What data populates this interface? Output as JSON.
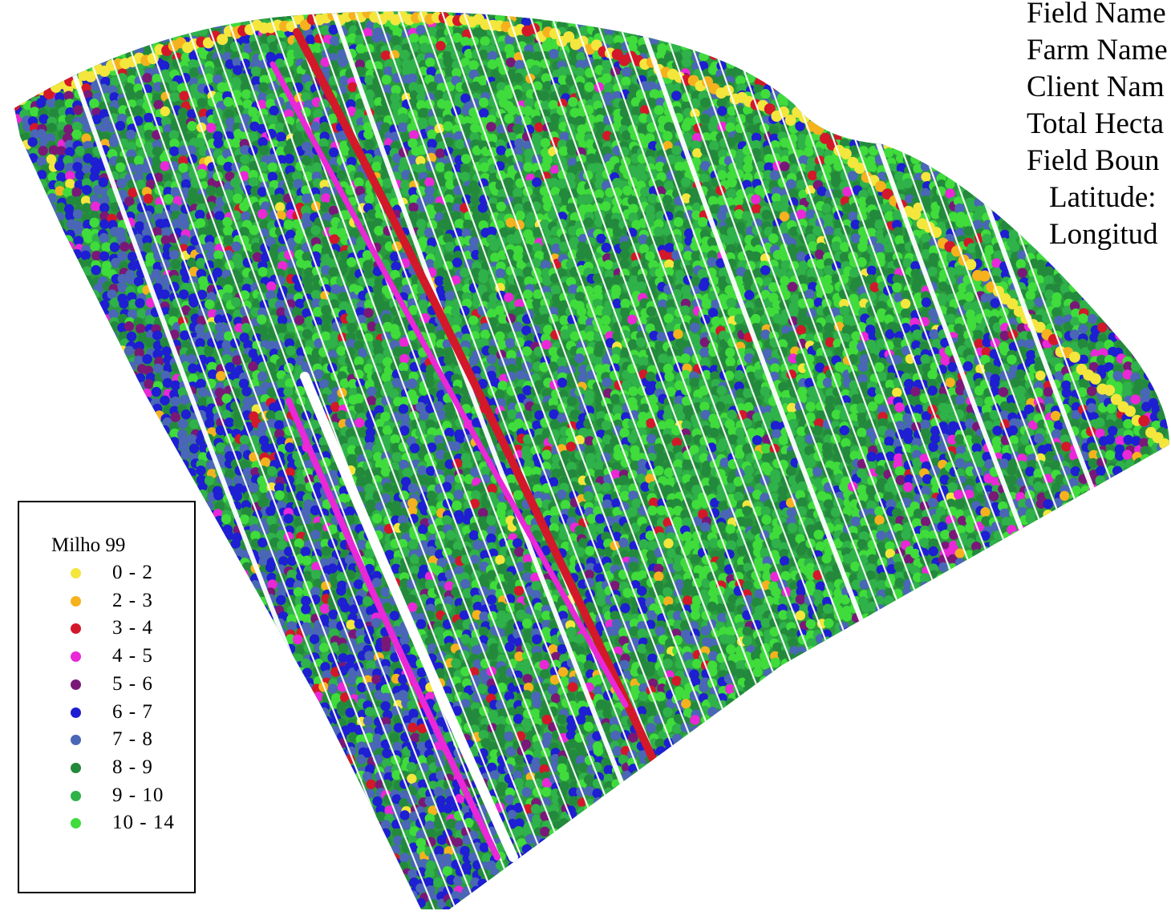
{
  "info": {
    "field_name": "Field Name",
    "farm_name": "Farm Name",
    "client_name": "Client Nam",
    "total_hectares": "Total Hecta",
    "field_boundary": "Field Boun",
    "latitude": "Latitude:",
    "longitude": "Longitud"
  },
  "legend": {
    "title": "Milho 99",
    "classes": [
      {
        "label": "0 - 2",
        "color": "#f4e63c"
      },
      {
        "label": "2 - 3",
        "color": "#f5b21e"
      },
      {
        "label": "3 - 4",
        "color": "#d3182a"
      },
      {
        "label": "4 - 5",
        "color": "#ea28d8"
      },
      {
        "label": "5 - 6",
        "color": "#7a1878"
      },
      {
        "label": "6 - 7",
        "color": "#1e1ed2"
      },
      {
        "label": "7 - 8",
        "color": "#4a66b6"
      },
      {
        "label": "8 - 9",
        "color": "#23893c"
      },
      {
        "label": "9 - 10",
        "color": "#2fb24a"
      },
      {
        "label": "10 - 14",
        "color": "#3fdc3c"
      }
    ]
  }
}
